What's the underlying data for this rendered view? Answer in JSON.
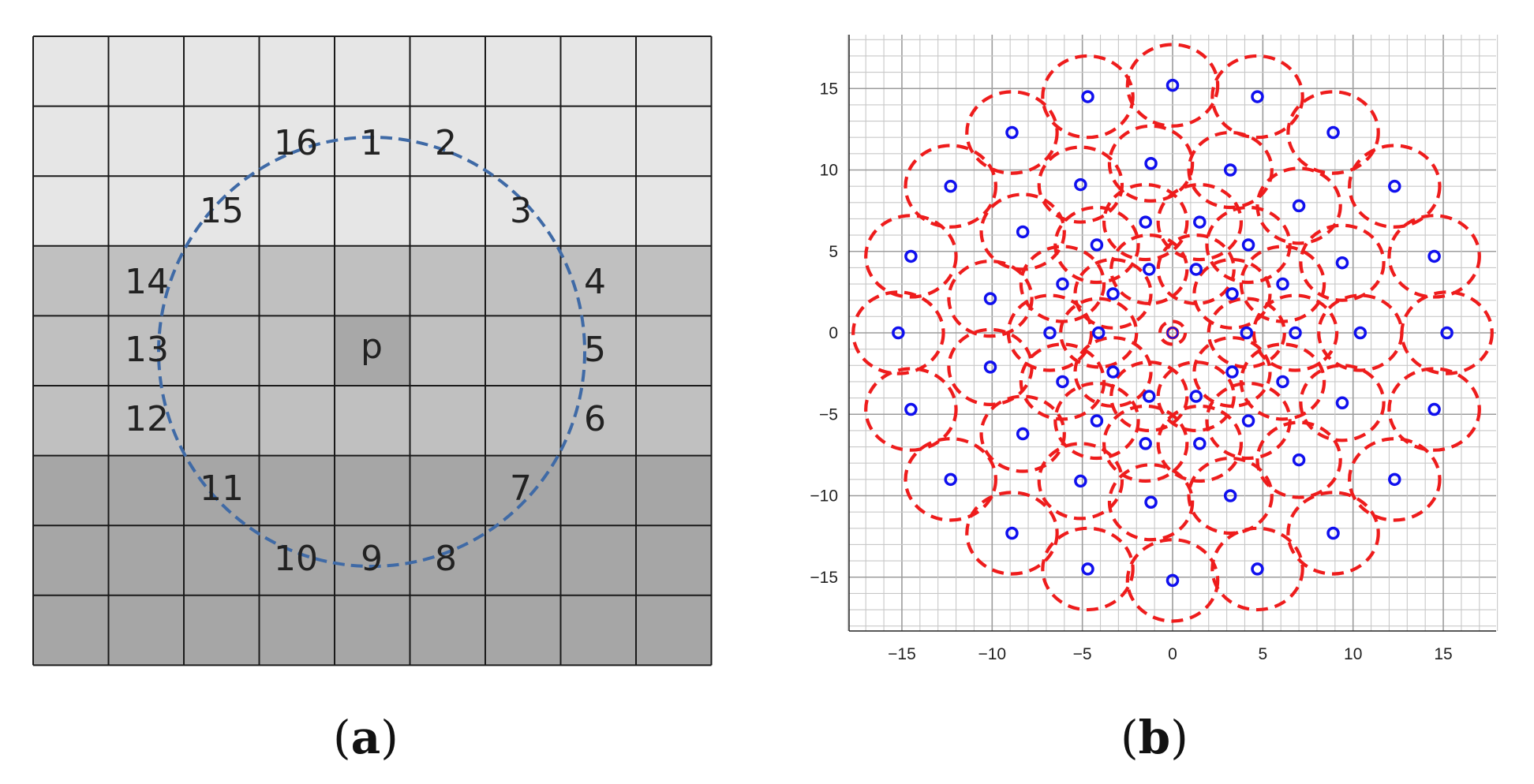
{
  "panel_a": {
    "caption_letter": "a",
    "center_label": "p",
    "ring_labels": [
      "1",
      "2",
      "3",
      "4",
      "5",
      "6",
      "7",
      "8",
      "9",
      "10",
      "11",
      "12",
      "13",
      "14",
      "15",
      "16"
    ],
    "band_colors": [
      "#e6e6e6",
      "#c0c0c0",
      "#a6a6a6"
    ],
    "center_color": "#a8a8a8",
    "circle_color": "#3f6aa6"
  },
  "panel_b": {
    "caption_letter": "b",
    "chart_data": {
      "type": "scatter",
      "title": "",
      "xlabel": "",
      "ylabel": "",
      "xlim": [
        -18,
        18
      ],
      "ylim": [
        -18,
        18
      ],
      "xticks": [
        "−15",
        "−10",
        "−5",
        "0",
        "5",
        "10",
        "15"
      ],
      "yticks": [
        "15",
        "10",
        "5",
        "0",
        "−5",
        "−10",
        "−15"
      ],
      "grid": true,
      "series": [
        {
          "marker": "circle-outline",
          "color": "#1010ee",
          "points": [
            [
              0,
              0
            ],
            [
              1.3,
              3.9
            ],
            [
              3.3,
              2.4
            ],
            [
              4.1,
              0
            ],
            [
              3.3,
              -2.4
            ],
            [
              1.3,
              -3.9
            ],
            [
              -1.3,
              -3.9
            ],
            [
              -3.3,
              -2.4
            ],
            [
              -4.1,
              0
            ],
            [
              -3.3,
              2.4
            ],
            [
              -1.3,
              3.9
            ],
            [
              1.5,
              6.8
            ],
            [
              4.2,
              5.4
            ],
            [
              6.1,
              3.0
            ],
            [
              6.8,
              0
            ],
            [
              6.1,
              -3.0
            ],
            [
              4.2,
              -5.4
            ],
            [
              1.5,
              -6.8
            ],
            [
              -1.5,
              -6.8
            ],
            [
              -4.2,
              -5.4
            ],
            [
              -6.1,
              -3.0
            ],
            [
              -6.8,
              0
            ],
            [
              -6.1,
              3.0
            ],
            [
              -4.2,
              5.4
            ],
            [
              -1.5,
              6.8
            ],
            [
              -1.2,
              10.4
            ],
            [
              3.2,
              10.0
            ],
            [
              7.0,
              7.8
            ],
            [
              9.4,
              4.3
            ],
            [
              10.4,
              0
            ],
            [
              9.4,
              -4.3
            ],
            [
              7.0,
              -7.8
            ],
            [
              3.2,
              -10.0
            ],
            [
              -1.2,
              -10.4
            ],
            [
              -5.1,
              -9.1
            ],
            [
              -8.3,
              -6.2
            ],
            [
              -10.1,
              -2.1
            ],
            [
              -10.1,
              2.1
            ],
            [
              -8.3,
              6.2
            ],
            [
              -5.1,
              9.1
            ],
            [
              0,
              15.2
            ],
            [
              4.7,
              14.5
            ],
            [
              8.9,
              12.3
            ],
            [
              12.3,
              9.0
            ],
            [
              14.5,
              4.7
            ],
            [
              15.2,
              0
            ],
            [
              14.5,
              -4.7
            ],
            [
              12.3,
              -9.0
            ],
            [
              8.9,
              -12.3
            ],
            [
              4.7,
              -14.5
            ],
            [
              0,
              -15.2
            ],
            [
              -4.7,
              -14.5
            ],
            [
              -8.9,
              -12.3
            ],
            [
              -12.3,
              -9.0
            ],
            [
              -14.5,
              -4.7
            ],
            [
              -15.2,
              0
            ],
            [
              -14.5,
              4.7
            ],
            [
              -12.3,
              9.0
            ],
            [
              -8.9,
              12.3
            ],
            [
              -4.7,
              14.5
            ]
          ],
          "ring_radii_by_group": [
            0.7,
            2.1,
            2.3,
            2.3,
            2.5
          ],
          "ring_color": "#ee1c1c",
          "ring_style": "dashed"
        }
      ]
    }
  }
}
